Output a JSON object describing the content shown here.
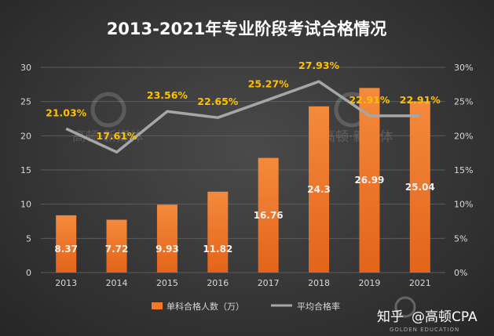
{
  "chart_data": {
    "type": "bar+line",
    "title": "2013-2021年专业阶段考试合格情况",
    "categories": [
      "2013",
      "2014",
      "2015",
      "2016",
      "2017",
      "2018",
      "2019",
      "2021"
    ],
    "series": [
      {
        "name": "单科合格人数（万）",
        "type": "bar",
        "axis": "left",
        "values": [
          8.37,
          7.72,
          9.93,
          11.82,
          16.76,
          24.3,
          26.99,
          25.04
        ],
        "labels": [
          "8.37",
          "7.72",
          "9.93",
          "11.82",
          "16.76",
          "24.3",
          "26.99",
          "25.04"
        ],
        "color": "#f07a2a"
      },
      {
        "name": "平均合格率",
        "type": "line",
        "axis": "right",
        "values": [
          21.03,
          17.61,
          23.56,
          22.65,
          25.27,
          27.93,
          22.91,
          22.91
        ],
        "labels": [
          "21.03%",
          "17.61%",
          "23.56%",
          "22.65%",
          "25.27%",
          "27.93%",
          "22.91%",
          "22.91%"
        ],
        "color": "#a6a6a6",
        "label_color": "#ffc000"
      }
    ],
    "left_axis": {
      "min": 0,
      "max": 30,
      "ticks": [
        "0",
        "5",
        "10",
        "15",
        "20",
        "25",
        "30"
      ]
    },
    "right_axis": {
      "min": 0,
      "max": 30,
      "ticks": [
        "0%",
        "5%",
        "10%",
        "15%",
        "20%",
        "25%",
        "30%"
      ]
    },
    "grid": true,
    "legend": "bottom"
  },
  "watermark": {
    "brand": "高顿·新媒体",
    "footer_site": "知乎",
    "footer_handle": "@高顿CPA",
    "footer_english": "GOLDEN EDUCATION"
  }
}
